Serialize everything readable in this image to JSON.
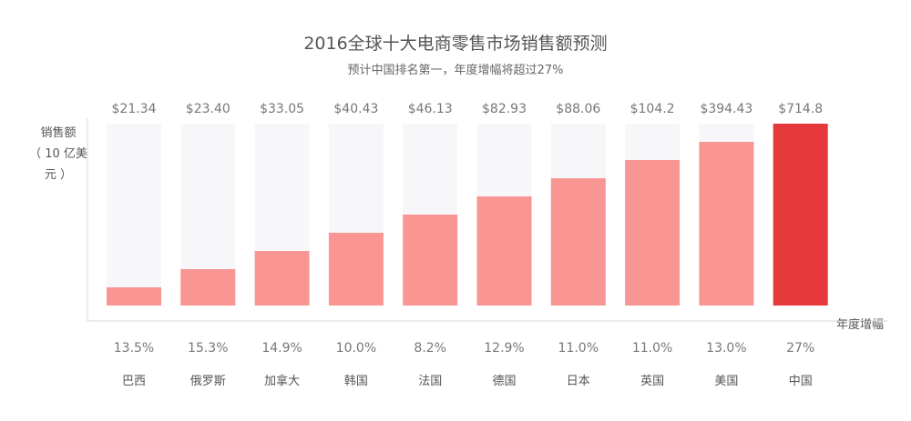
{
  "chart_data": {
    "type": "bar",
    "title": "2016全球十大电商零售市场销售额预测",
    "subtitle": "预计中国排名第一，年度增幅将超过27%",
    "ylabel": "销售额",
    "yunit": "（ 10 亿美元 ）",
    "xlabel": "年度增幅",
    "categories": [
      "巴西",
      "俄罗斯",
      "加拿大",
      "韩国",
      "法国",
      "德国",
      "日本",
      "英国",
      "美国",
      "中国"
    ],
    "value_labels": [
      "$21.34",
      "$23.40",
      "$33.05",
      "$40.43",
      "$46.13",
      "$82.93",
      "$88.06",
      "$104.2",
      "$394.43",
      "$714.8"
    ],
    "values": [
      21.34,
      23.4,
      33.05,
      40.43,
      46.13,
      82.93,
      88.06,
      104.2,
      394.43,
      714.8
    ],
    "growth_labels": [
      "13.5%",
      "15.3%",
      "14.9%",
      "10.0%",
      "8.2%",
      "12.9%",
      "11.0%",
      "11.0%",
      "13.0%",
      "27%"
    ],
    "colors": {
      "bar": "#F99694",
      "highlight": "#E5383B",
      "track": "#F7F7F9",
      "axis": "#D9D9D9"
    }
  }
}
